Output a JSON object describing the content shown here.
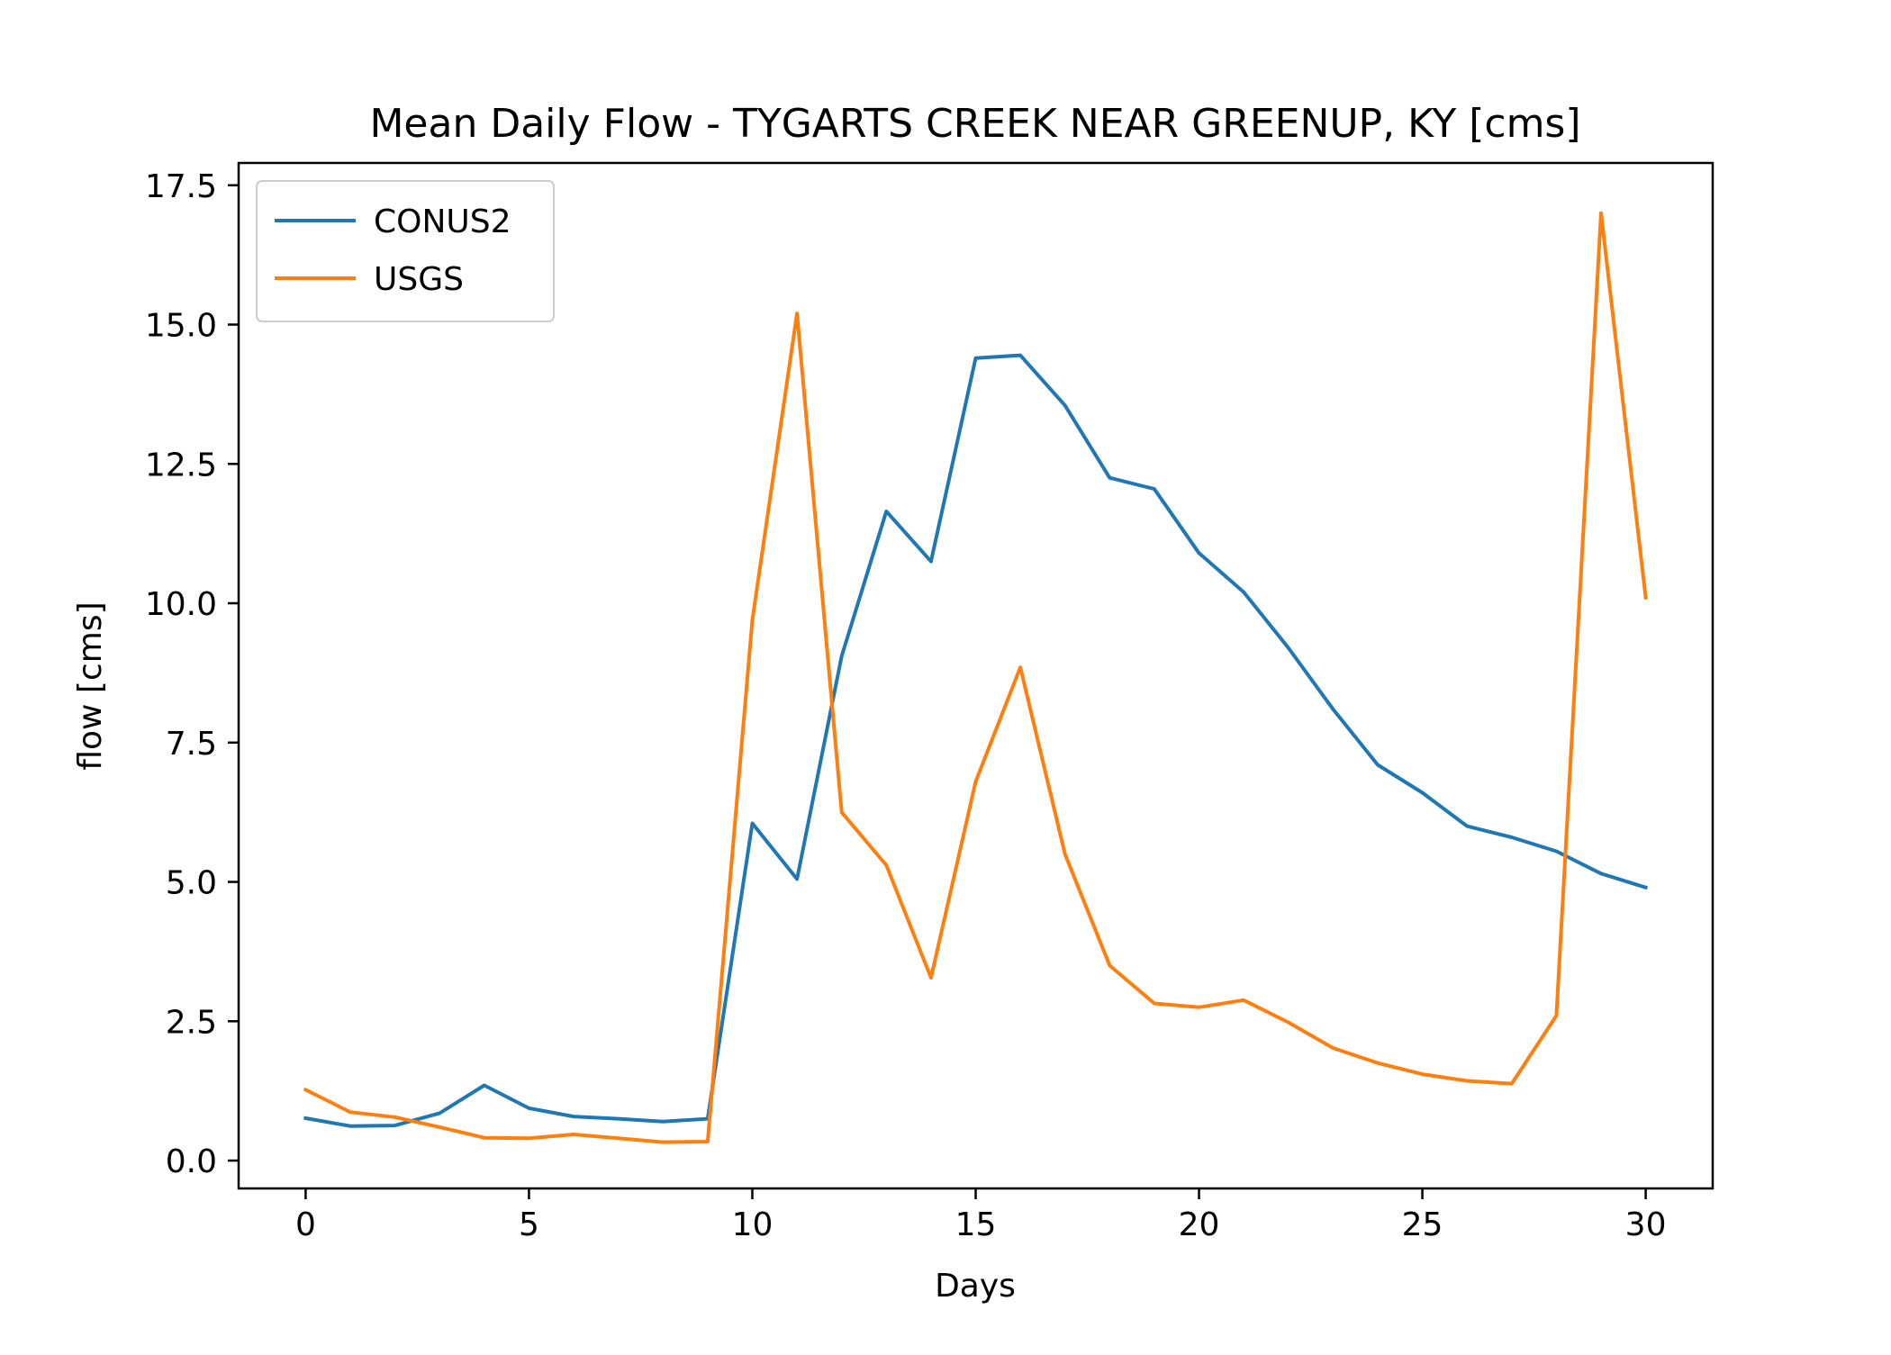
{
  "chart_data": {
    "type": "line",
    "title": "Mean Daily Flow - TYGARTS CREEK NEAR GREENUP, KY [cms]",
    "xlabel": "Days",
    "ylabel": "flow [cms]",
    "xlim": [
      -1.5,
      31.5
    ],
    "ylim": [
      -0.5,
      17.9
    ],
    "xticks": [
      0,
      5,
      10,
      15,
      20,
      25,
      30
    ],
    "xtick_labels": [
      "0",
      "5",
      "10",
      "15",
      "20",
      "25",
      "30"
    ],
    "yticks": [
      0,
      2.5,
      5,
      7.5,
      10,
      12.5,
      15,
      17.5
    ],
    "ytick_labels": [
      "0.0",
      "2.5",
      "5.0",
      "7.5",
      "10.0",
      "12.5",
      "15.0",
      "17.5"
    ],
    "grid": false,
    "legend_position": "top-left",
    "x": [
      0,
      1,
      2,
      3,
      4,
      5,
      6,
      7,
      8,
      9,
      10,
      11,
      12,
      13,
      14,
      15,
      16,
      17,
      18,
      19,
      20,
      21,
      22,
      23,
      24,
      25,
      26,
      27,
      28,
      29,
      30
    ],
    "series": [
      {
        "name": "CONUS2",
        "color": "#1f77b4",
        "values": [
          0.76,
          0.62,
          0.63,
          0.85,
          1.35,
          0.94,
          0.79,
          0.75,
          0.7,
          0.75,
          6.05,
          5.05,
          9.05,
          11.65,
          10.75,
          14.4,
          14.45,
          13.55,
          12.25,
          12.05,
          10.9,
          10.2,
          9.2,
          8.1,
          7.1,
          6.6,
          6.0,
          5.8,
          5.55,
          5.15,
          4.9
        ]
      },
      {
        "name": "USGS",
        "color": "#ff7f0e",
        "values": [
          1.27,
          0.87,
          0.78,
          0.6,
          0.41,
          0.4,
          0.47,
          0.4,
          0.33,
          0.34,
          9.7,
          15.2,
          6.25,
          5.3,
          3.28,
          6.8,
          8.85,
          5.5,
          3.5,
          2.82,
          2.75,
          2.88,
          2.48,
          2.02,
          1.75,
          1.55,
          1.43,
          1.38,
          2.6,
          17.0,
          10.1
        ]
      }
    ]
  }
}
